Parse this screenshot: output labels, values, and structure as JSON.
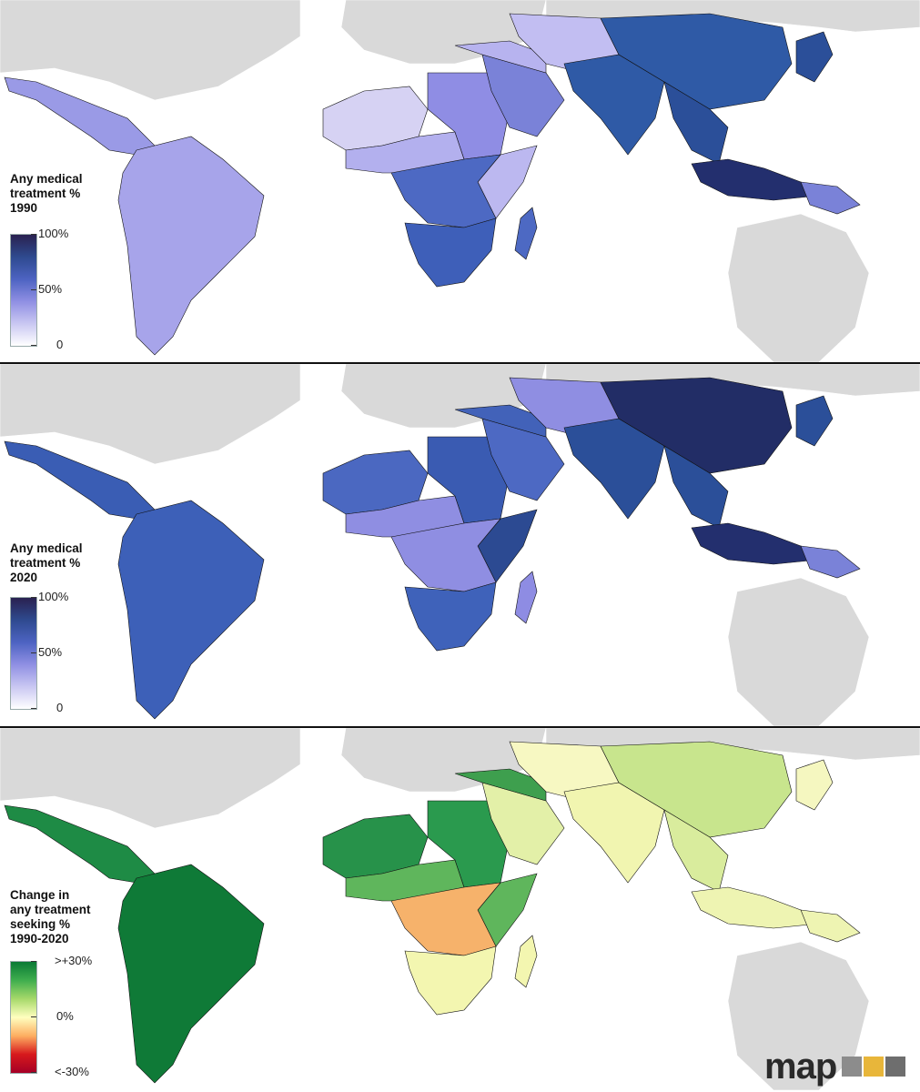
{
  "panels": [
    {
      "legend_title_lines": [
        "Any medical",
        "treatment %",
        "1990"
      ],
      "scale_ticks": [
        "100%",
        "50%",
        "0"
      ],
      "gradient": [
        "#2a2150",
        "#2e4a8f",
        "#4d63c2",
        "#8f8fe3",
        "#c9c7f2",
        "#ffffff"
      ],
      "fills": {
        "northAmericaBG": "#d9d9d9",
        "centralAmerica": "#9a9ae6",
        "southAmerica": "#a7a4ea",
        "saharaWest": "#d6d2f3",
        "sahel": "#b3b0ee",
        "egyptSudan": "#8f8de4",
        "centralAfrica": "#4d69c3",
        "southernAfrica": "#3e5fb9",
        "eastAfrica": "#bcb8f0",
        "madagascar": "#4d69c3",
        "arabia": "#7a82d8",
        "middleEast": "#b7b3ef",
        "centralAsia": "#c2bef2",
        "southAsia": "#2f5aa6",
        "china": "#2f5aa6",
        "southeastAsia": "#2b4f99",
        "indonesia": "#232f6e",
        "png": "#7a82d8",
        "japan": "#2b4f99",
        "oceaniaBG": "#d9d9d9",
        "europeBG": "#d9d9d9",
        "russiaBG": "#d9d9d9"
      }
    },
    {
      "legend_title_lines": [
        "Any medical",
        "treatment %",
        "2020"
      ],
      "scale_ticks": [
        "100%",
        "50%",
        "0"
      ],
      "gradient": [
        "#2a2150",
        "#2e4a8f",
        "#4d63c2",
        "#8f8fe3",
        "#c9c7f2",
        "#ffffff"
      ],
      "fills": {
        "northAmericaBG": "#d9d9d9",
        "centralAmerica": "#3a5db4",
        "southAmerica": "#3d60b8",
        "saharaWest": "#4b68c1",
        "sahel": "#8f8ee2",
        "egyptSudan": "#3a5bb2",
        "centralAfrica": "#8f8ee2",
        "southernAfrica": "#3f62ba",
        "eastAfrica": "#2c4a92",
        "madagascar": "#8e8ce3",
        "arabia": "#4d69c3",
        "middleEast": "#4262b9",
        "centralAsia": "#8f8ee2",
        "southAsia": "#2b4f99",
        "china": "#222d66",
        "southeastAsia": "#2b4f99",
        "indonesia": "#232f6e",
        "png": "#7a82d8",
        "japan": "#2b4f99",
        "oceaniaBG": "#d9d9d9",
        "europeBG": "#d9d9d9",
        "russiaBG": "#d9d9d9"
      }
    },
    {
      "legend_title_lines": [
        "Change in",
        "any treatment",
        "seeking %",
        "1990-2020"
      ],
      "scale_ticks": [
        ">+30%",
        "0%",
        "<-30%"
      ],
      "gradient": [
        "#0a7a35",
        "#3fae4e",
        "#a6d96a",
        "#ffffbf",
        "#fdae61",
        "#d7191c",
        "#a50026"
      ],
      "fills": {
        "northAmericaBG": "#d9d9d9",
        "centralAmerica": "#1e8b45",
        "southAmerica": "#0f7a37",
        "saharaWest": "#27924a",
        "sahel": "#5fb65c",
        "egyptSudan": "#2a9a4e",
        "centralAfrica": "#f6b26b",
        "southernAfrica": "#f3f6b0",
        "eastAfrica": "#5fb65c",
        "madagascar": "#f3f6b0",
        "arabia": "#e3f0a8",
        "middleEast": "#3e9f4e",
        "centralAsia": "#f7f8c2",
        "southAsia": "#f1f5b0",
        "china": "#c8e58d",
        "southeastAsia": "#d9ec9d",
        "indonesia": "#eef4b2",
        "png": "#eef4b2",
        "japan": "#f5f7c0",
        "oceaniaBG": "#d9d9d9",
        "europeBG": "#d9d9d9",
        "russiaBG": "#d9d9d9"
      }
    }
  ],
  "logo": {
    "text": "map",
    "box_colors": [
      "#8c8c8c",
      "#e8b63a",
      "#6e6e6e"
    ]
  }
}
